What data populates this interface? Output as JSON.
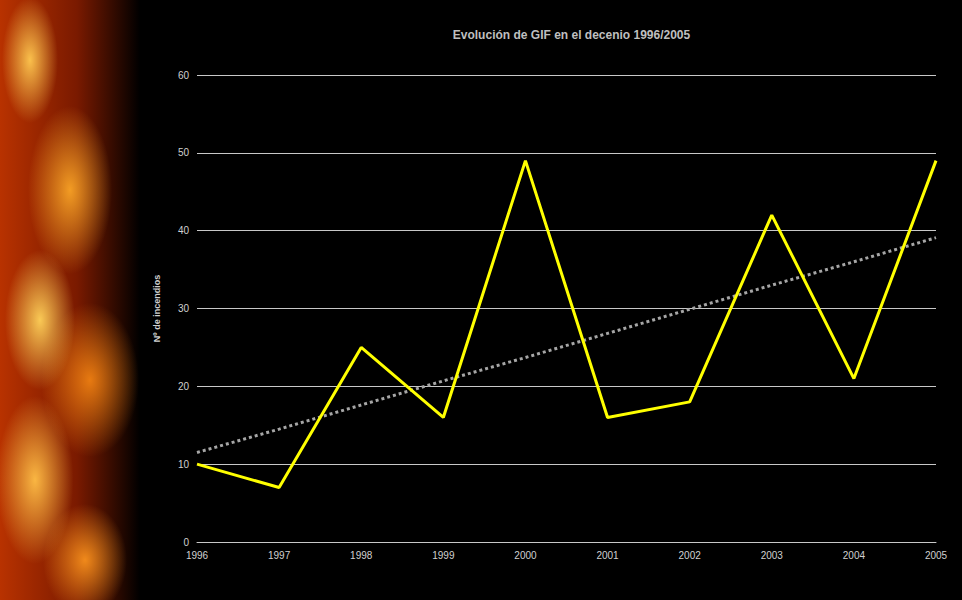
{
  "chart_data": {
    "type": "line",
    "title": "Evolución de GIF en el decenio 1996/2005",
    "y_label": "Nº de incendios",
    "categories": [
      "1996",
      "1997",
      "1998",
      "1999",
      "2000",
      "2001",
      "2002",
      "2003",
      "2004",
      "2005"
    ],
    "series": [
      {
        "color": "#ffff00",
        "line_style": "solid",
        "marker": "none",
        "values": [
          10,
          7,
          25,
          16,
          49,
          16,
          18,
          42,
          21,
          49
        ]
      },
      {
        "color": "#a6a6a6",
        "line_style": "dotted",
        "marker": "none",
        "values": [
          11.5,
          14.5,
          17.6,
          20.7,
          23.7,
          26.8,
          29.9,
          33,
          36,
          39.1
        ]
      }
    ],
    "ylim": [
      0,
      60
    ],
    "yticks": [
      0,
      10,
      20,
      30,
      40,
      50,
      60
    ],
    "grid": true
  }
}
